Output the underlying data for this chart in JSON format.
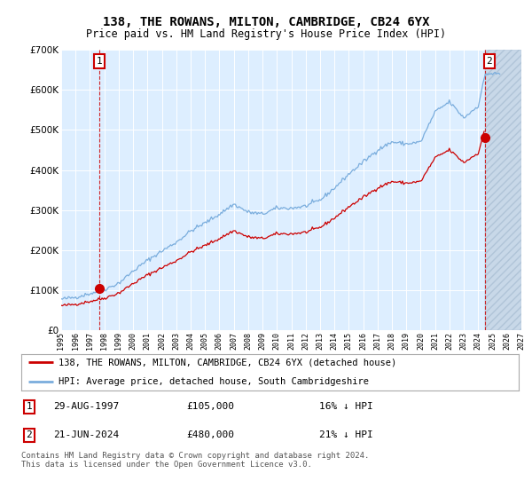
{
  "title": "138, THE ROWANS, MILTON, CAMBRIDGE, CB24 6YX",
  "subtitle": "Price paid vs. HM Land Registry's House Price Index (HPI)",
  "legend_line1": "138, THE ROWANS, MILTON, CAMBRIDGE, CB24 6YX (detached house)",
  "legend_line2": "HPI: Average price, detached house, South Cambridgeshire",
  "transaction1_date": "29-AUG-1997",
  "transaction1_price": 105000,
  "transaction1_year": 1997.66,
  "transaction2_date": "21-JUN-2024",
  "transaction2_price": 480000,
  "transaction2_year": 2024.46,
  "footnote": "Contains HM Land Registry data © Crown copyright and database right 2024.\nThis data is licensed under the Open Government Licence v3.0.",
  "xmin": 1995,
  "xmax": 2027,
  "ymin": 0,
  "ymax": 700000,
  "red_color": "#cc0000",
  "blue_color": "#7aaddd",
  "bg_color": "#ddeeff",
  "hatch_color": "#c8d8e8",
  "hpi_waypoints_x": [
    1995,
    1996,
    1997,
    1998,
    1999,
    2000,
    2001,
    2002,
    2003,
    2004,
    2005,
    2006,
    2007,
    2008,
    2009,
    2010,
    2011,
    2012,
    2013,
    2014,
    2015,
    2016,
    2017,
    2018,
    2019,
    2020,
    2021,
    2022,
    2023,
    2024,
    2024.5
  ],
  "hpi_waypoints_y": [
    78000,
    83000,
    92000,
    102000,
    118000,
    148000,
    175000,
    198000,
    220000,
    248000,
    268000,
    290000,
    315000,
    295000,
    290000,
    305000,
    305000,
    310000,
    325000,
    355000,
    390000,
    420000,
    450000,
    470000,
    465000,
    470000,
    545000,
    570000,
    530000,
    560000,
    640000
  ],
  "scale_factor": 0.79,
  "red_start_year": 1995.0
}
